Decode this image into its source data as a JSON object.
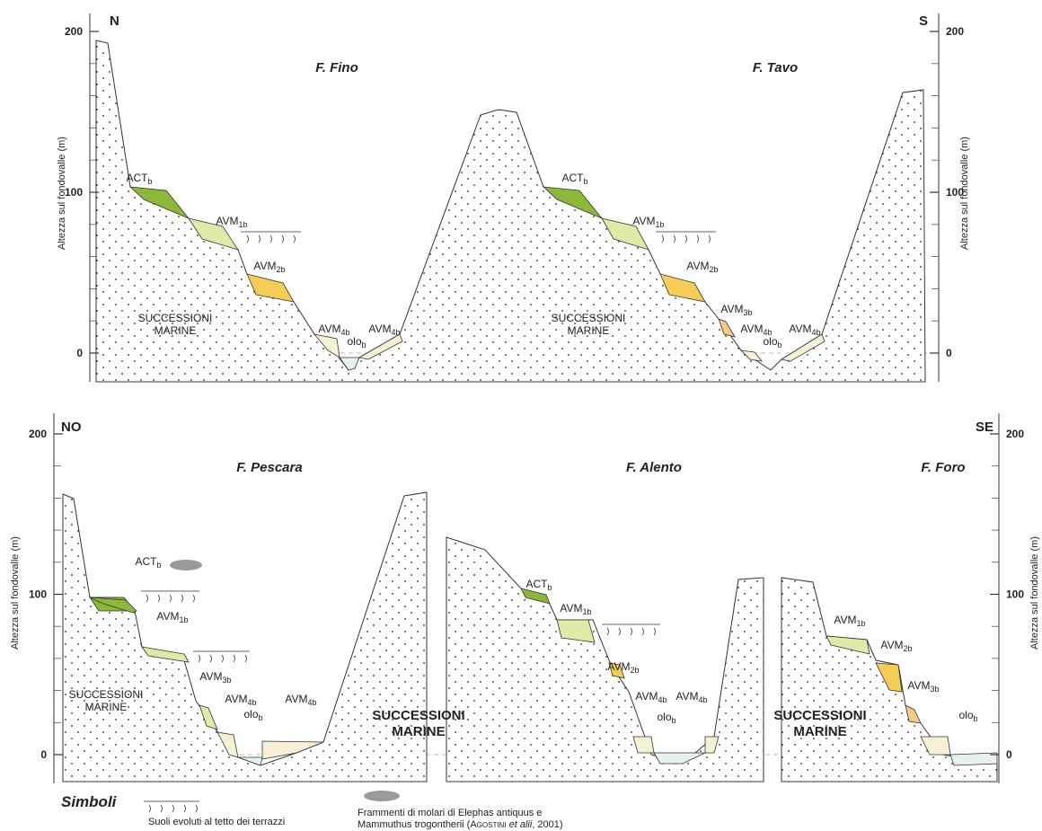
{
  "top_section": {
    "left_end": "N",
    "right_end": "S",
    "axis_title": "Altezza sul fondovalle (m)",
    "ticks": [
      200,
      100,
      0
    ],
    "rivers": [
      {
        "name": "F. Fino",
        "substrate": [
          "SUCCESSIONI",
          "MARINE"
        ],
        "units": [
          {
            "base": "ACT",
            "sub": "b"
          },
          {
            "base": "AVM",
            "sub": "1b"
          },
          {
            "base": "AVM",
            "sub": "2b"
          },
          {
            "base": "AVM",
            "sub": "4b"
          },
          {
            "base": "olo",
            "sub": "b"
          },
          {
            "base": "AVM",
            "sub": "4b"
          }
        ]
      },
      {
        "name": "F. Tavo",
        "substrate": [
          "SUCCESSIONI",
          "MARINE"
        ],
        "units": [
          {
            "base": "ACT",
            "sub": "b"
          },
          {
            "base": "AVM",
            "sub": "1b"
          },
          {
            "base": "AVM",
            "sub": "2b"
          },
          {
            "base": "AVM",
            "sub": "3b"
          },
          {
            "base": "AVM",
            "sub": "4b"
          },
          {
            "base": "olo",
            "sub": "b"
          },
          {
            "base": "AVM",
            "sub": "4b"
          }
        ]
      }
    ]
  },
  "bottom_section": {
    "left_end": "NO",
    "right_end": "SE",
    "axis_title": "Altezza sul fondovalle (m)",
    "ticks": [
      200,
      100,
      0
    ],
    "rivers": [
      {
        "name": "F. Pescara",
        "substrate": [
          "SUCCESSIONI",
          "MARINE"
        ],
        "units": [
          {
            "base": "ACT",
            "sub": "b"
          },
          {
            "base": "AVM",
            "sub": "1b"
          },
          {
            "base": "AVM",
            "sub": "3b"
          },
          {
            "base": "AVM",
            "sub": "4b"
          },
          {
            "base": "olo",
            "sub": "b"
          },
          {
            "base": "AVM",
            "sub": "4b"
          }
        ]
      },
      {
        "name": "F. Alento",
        "substrate": [
          "SUCCESSIONI",
          "MARINE"
        ],
        "units": [
          {
            "base": "ACT",
            "sub": "b"
          },
          {
            "base": "AVM",
            "sub": "1b"
          },
          {
            "base": "AVM",
            "sub": "2b"
          },
          {
            "base": "AVM",
            "sub": "4b"
          },
          {
            "base": "AVM",
            "sub": "4b"
          },
          {
            "base": "olo",
            "sub": "b"
          }
        ]
      },
      {
        "name": "F. Foro",
        "substrate": [
          "SUCCESSIONI",
          "MARINE"
        ],
        "units": [
          {
            "base": "AVM",
            "sub": "1b"
          },
          {
            "base": "AVM",
            "sub": "2b"
          },
          {
            "base": "AVM",
            "sub": "3b"
          },
          {
            "base": "olo",
            "sub": "b"
          }
        ]
      }
    ]
  },
  "legend": {
    "title": "Simboli",
    "soil": "Suoli evoluti al tetto dei terrazzi",
    "fossils_line1": "Frammenti di molari di Elephas antiquus e",
    "fossils_line2": [
      "Mammuthus trogontherii (",
      "Agostini ",
      "et alii",
      ", 2001)"
    ]
  }
}
